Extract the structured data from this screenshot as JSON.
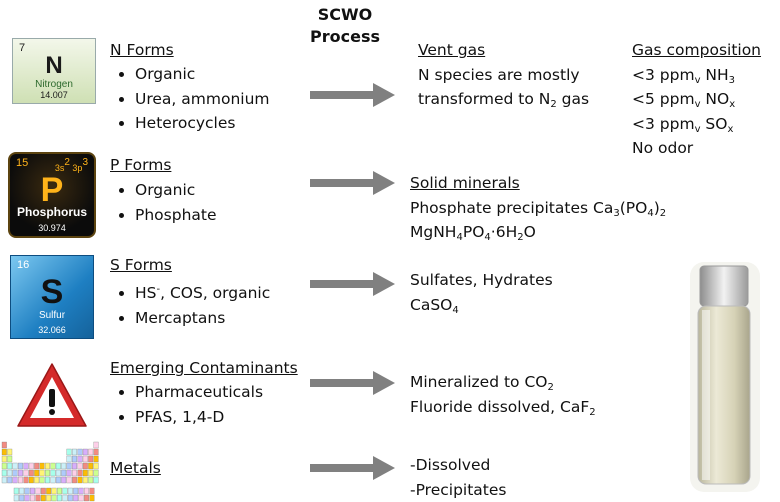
{
  "title": [
    "SCWO",
    "Process"
  ],
  "rows": [
    {
      "tile": {
        "number": "7",
        "symbol": "N",
        "name": "Nitrogen",
        "mass": "14.007"
      },
      "heading": "N Forms",
      "items": [
        "Organic",
        "Urea, ammonium",
        "Heterocycles"
      ],
      "outcome": {
        "heading": "Vent gas",
        "lines": [
          "N species are mostly",
          [
            {
              "text": "transformed to N"
            },
            {
              "sub": "2"
            },
            {
              "text": " gas"
            }
          ]
        ]
      }
    },
    {
      "tile": {
        "number": "15",
        "config": [
          {
            "text": "3s"
          },
          {
            "sup": "2"
          },
          {
            "text": " 3p"
          },
          {
            "sup": "3"
          }
        ],
        "symbol": "P",
        "name": "Phosphorus",
        "mass": "30.974"
      },
      "heading": "P Forms",
      "items": [
        "Organic",
        "Phosphate"
      ],
      "outcome": {
        "heading": "Solid minerals",
        "lines": [
          [
            {
              "text": "Phosphate precipitates Ca"
            },
            {
              "sub": "3"
            },
            {
              "text": "(PO"
            },
            {
              "sub": "4"
            },
            {
              "text": ")"
            },
            {
              "sub": "2"
            }
          ],
          [
            {
              "text": "MgNH"
            },
            {
              "sub": "4"
            },
            {
              "text": "PO"
            },
            {
              "sub": "4"
            },
            {
              "text": "·6H"
            },
            {
              "sub": "2"
            },
            {
              "text": "O"
            }
          ]
        ]
      }
    },
    {
      "tile": {
        "number": "16",
        "symbol": "S",
        "name": "Sulfur",
        "mass": "32.066"
      },
      "heading": "S Forms",
      "items": [
        [
          {
            "text": "HS"
          },
          {
            "sup": "-"
          },
          {
            "text": ", COS, organic"
          }
        ],
        "Mercaptans"
      ],
      "outcome": {
        "lines": [
          "Sulfates, Hydrates",
          [
            {
              "text": "CaSO"
            },
            {
              "sub": "4"
            }
          ]
        ]
      }
    },
    {
      "heading": "Emerging Contaminants",
      "items": [
        "Pharmaceuticals",
        "PFAS, 1,4-D"
      ],
      "outcome": {
        "lines": [
          [
            {
              "text": "Mineralized to CO"
            },
            {
              "sub": "2"
            }
          ],
          [
            {
              "text": "Fluoride dissolved, CaF"
            },
            {
              "sub": "2"
            }
          ]
        ]
      }
    },
    {
      "heading": "Metals",
      "outcome": {
        "lines": [
          "-Dissolved",
          "-Precipitates"
        ]
      }
    }
  ],
  "gas_composition": {
    "heading": "Gas composition",
    "lines": [
      [
        {
          "text": "<3 ppm"
        },
        {
          "sub": "v"
        },
        {
          "text": " NH"
        },
        {
          "sub": "3"
        }
      ],
      [
        {
          "text": "<5 ppm"
        },
        {
          "sub": "v"
        },
        {
          "text": " NO"
        },
        {
          "sub": "x"
        }
      ],
      [
        {
          "text": "<3 ppm"
        },
        {
          "sub": "v"
        },
        {
          "text": " SO"
        },
        {
          "sub": "x"
        }
      ],
      "No odor"
    ]
  }
}
